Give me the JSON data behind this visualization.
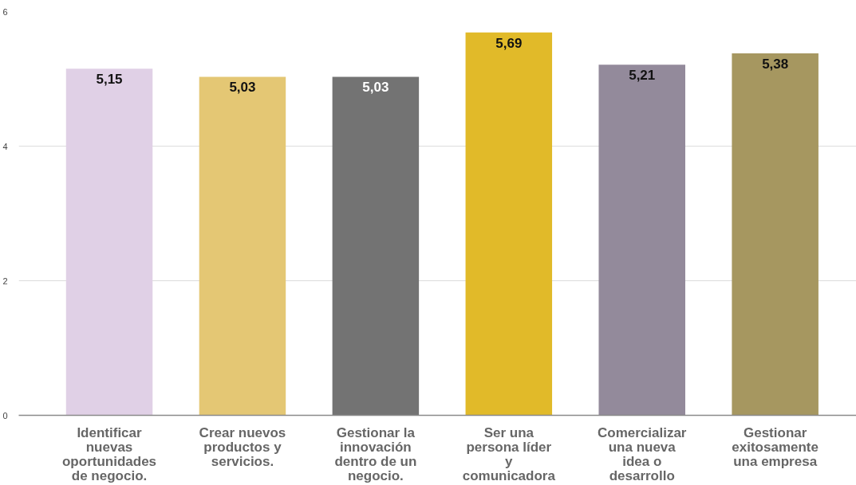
{
  "chart_data": {
    "type": "bar",
    "categories": [
      "Identificar nuevas oportunidades de negocio.",
      "Crear nuevos productos y servicios.",
      "Gestionar la innovación dentro de un negocio.",
      "Ser una persona líder y comunicadora",
      "Comercializar una nueva idea o desarrollo",
      "Gestionar exitosamente una empresa"
    ],
    "values": [
      5.15,
      5.03,
      5.03,
      5.69,
      5.21,
      5.38
    ],
    "colors": [
      "#e0d0e6",
      "#e4c774",
      "#737373",
      "#e1ba29",
      "#938a9b",
      "#a69760"
    ],
    "value_labels": [
      "5,15",
      "5,03",
      "5,03",
      "5,69",
      "5,21",
      "5,38"
    ],
    "ylim": [
      0,
      6
    ],
    "yticks": [
      0,
      2,
      4,
      6
    ],
    "grid": "y"
  }
}
